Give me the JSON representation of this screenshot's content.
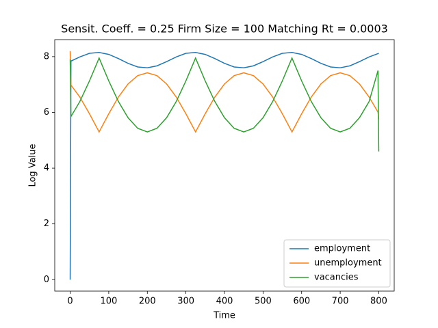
{
  "chart_data": {
    "type": "line",
    "title": "Sensit. Coeff. = 0.25 Firm Size = 100 Matching Rt = 0.0003",
    "x_label": "Time",
    "y_label": "Log Value",
    "x": [
      0,
      2,
      25,
      50,
      75,
      100,
      125,
      150,
      175,
      200,
      225,
      250,
      275,
      300,
      325,
      350,
      375,
      400,
      425,
      450,
      475,
      500,
      525,
      550,
      575,
      600,
      625,
      650,
      675,
      700,
      725,
      750,
      775,
      798,
      800
    ],
    "series": [
      {
        "name": "employment",
        "color": "#1f77b4",
        "values": [
          0,
          7.84,
          7.99,
          8.12,
          8.15,
          8.08,
          7.93,
          7.76,
          7.63,
          7.6,
          7.67,
          7.82,
          7.99,
          8.12,
          8.15,
          8.08,
          7.93,
          7.76,
          7.63,
          7.6,
          7.67,
          7.82,
          7.99,
          8.12,
          8.15,
          8.08,
          7.93,
          7.76,
          7.63,
          7.6,
          7.67,
          7.82,
          7.99,
          8.11,
          8.12
        ]
      },
      {
        "name": "unemployment",
        "color": "#ff7f0e",
        "values": [
          8.2,
          6.98,
          6.55,
          5.95,
          5.3,
          5.95,
          6.55,
          7.02,
          7.32,
          7.42,
          7.32,
          7.02,
          6.55,
          5.95,
          5.3,
          5.95,
          6.55,
          7.02,
          7.32,
          7.42,
          7.32,
          7.02,
          6.55,
          5.95,
          5.3,
          5.95,
          6.55,
          7.02,
          7.32,
          7.42,
          7.32,
          7.02,
          6.55,
          6.01,
          5.75
        ]
      },
      {
        "name": "vacancies",
        "color": "#2ca02c",
        "values": [
          7.9,
          5.85,
          6.39,
          7.13,
          7.95,
          7.13,
          6.39,
          5.81,
          5.43,
          5.3,
          5.43,
          5.81,
          6.39,
          7.13,
          7.95,
          7.13,
          6.39,
          5.81,
          5.43,
          5.3,
          5.43,
          5.81,
          6.39,
          7.13,
          7.95,
          7.13,
          6.39,
          5.81,
          5.43,
          5.3,
          5.43,
          5.81,
          6.39,
          7.5,
          4.6
        ]
      }
    ],
    "xlim": [
      -40,
      840
    ],
    "xticks": [
      0,
      100,
      200,
      300,
      400,
      500,
      600,
      700,
      800
    ],
    "ylim": [
      -0.41,
      8.61
    ],
    "yticks": [
      0,
      2,
      4,
      6,
      8
    ],
    "grid": false,
    "legend": "lower right"
  }
}
